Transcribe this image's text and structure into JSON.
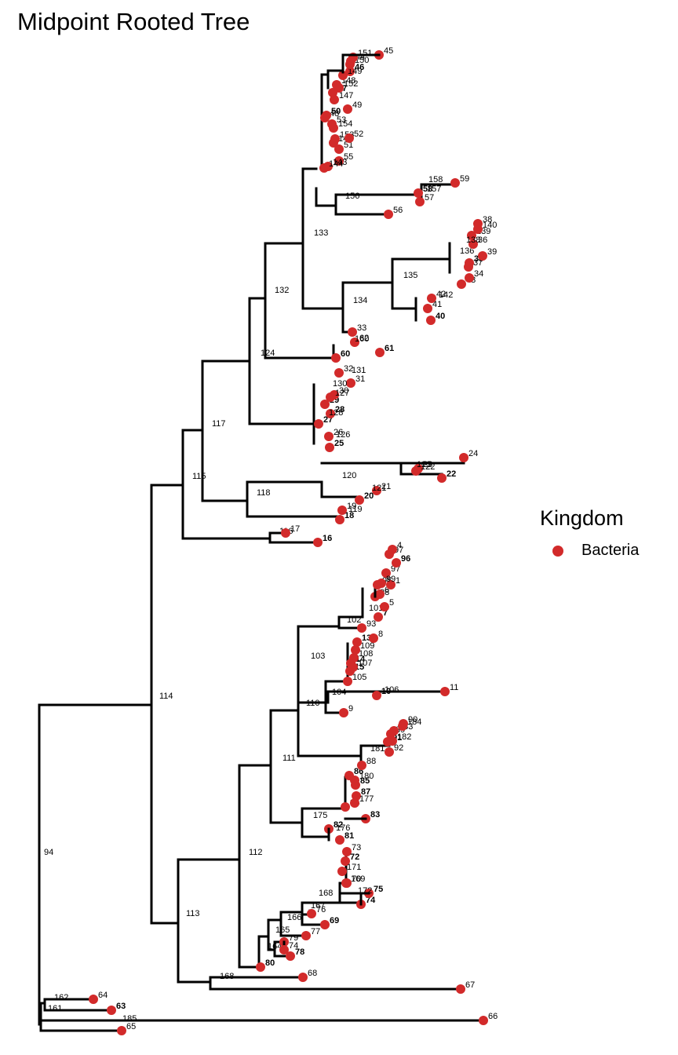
{
  "title": "Midpoint Rooted Tree",
  "legend": {
    "title": "Kingdom",
    "items": [
      {
        "label": "Bacteria",
        "color": "#D22A2A"
      }
    ]
  },
  "tree": {
    "tip_color": "#D22A2A",
    "tips": [
      "1",
      "4",
      "5",
      "8",
      "9",
      "10",
      "11",
      "13",
      "14",
      "15",
      "16",
      "17",
      "18",
      "19",
      "20",
      "21",
      "22",
      "24",
      "25",
      "26",
      "27",
      "28",
      "29",
      "30",
      "31",
      "33",
      "34",
      "35",
      "36",
      "37",
      "38",
      "39",
      "40",
      "42",
      "43",
      "45",
      "46",
      "47",
      "48",
      "49",
      "50",
      "51",
      "52",
      "55",
      "56",
      "57",
      "58",
      "59",
      "60",
      "61",
      "62",
      "63",
      "64",
      "65",
      "66",
      "67",
      "68",
      "69",
      "70",
      "72",
      "73",
      "74",
      "75",
      "77",
      "78",
      "79",
      "80",
      "81",
      "82",
      "83",
      "84",
      "85",
      "86",
      "87",
      "88",
      "89",
      "90",
      "91",
      "92",
      "93",
      "95",
      "96",
      "97",
      "98"
    ],
    "internal_nodes": [
      "94",
      "95",
      "96",
      "97",
      "98",
      "99",
      "100",
      "101",
      "102",
      "103",
      "104",
      "105",
      "106",
      "107",
      "108",
      "109",
      "110",
      "111",
      "112",
      "113",
      "114",
      "115",
      "116",
      "117",
      "118",
      "119",
      "120",
      "121",
      "122",
      "123",
      "124",
      "125",
      "126",
      "127",
      "128",
      "129",
      "130",
      "131",
      "132",
      "133",
      "134",
      "135",
      "136",
      "137",
      "138",
      "139",
      "140",
      "141",
      "142",
      "143",
      "144",
      "145",
      "146",
      "147",
      "148",
      "149",
      "150",
      "151",
      "152",
      "153",
      "154",
      "155",
      "156",
      "157",
      "158",
      "159",
      "160",
      "161",
      "162",
      "163",
      "164",
      "165",
      "166",
      "167",
      "168",
      "169",
      "170",
      "171",
      "172",
      "173",
      "174",
      "175",
      "176",
      "177",
      "178",
      "179",
      "180",
      "181",
      "182",
      "183",
      "184",
      "185"
    ]
  }
}
